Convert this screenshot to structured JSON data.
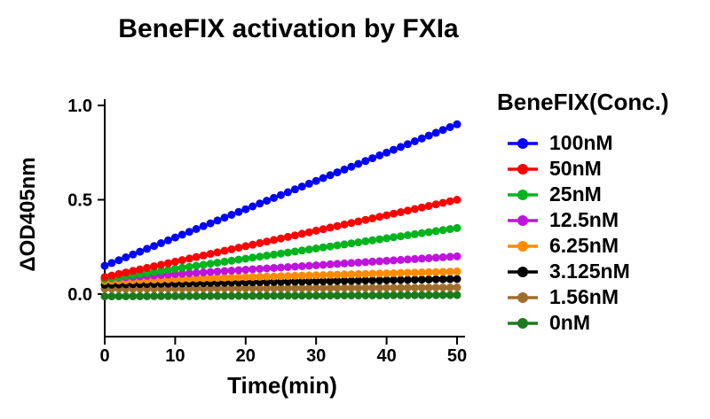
{
  "chart_data": {
    "type": "line",
    "title": "BeneFIX activation by FXIa",
    "xlabel": "Time(min)",
    "ylabel": "ΔOD405nm",
    "xlim": [
      0,
      50
    ],
    "ylim": [
      0,
      1.0
    ],
    "xticks": [
      0,
      10,
      20,
      30,
      40,
      50
    ],
    "ytick_labels": [
      "0.0",
      "0.5",
      "1.0"
    ],
    "yticks": [
      0.0,
      0.5,
      1.0
    ],
    "grid": false,
    "legend_title": "BeneFIX(Conc.)",
    "legend_position": "right",
    "axis_color": "#000000",
    "marker_shape": "circle",
    "x_step_min": 1,
    "n_points_per_series": 51,
    "interpolation": "linear",
    "series": [
      {
        "name": "100nM",
        "color": "#0000FF",
        "x_start": 0,
        "x_end": 50,
        "y_start": 0.15,
        "y_end": 0.9
      },
      {
        "name": "50nM",
        "color": "#FF0000",
        "x_start": 0,
        "x_end": 50,
        "y_start": 0.09,
        "y_end": 0.5
      },
      {
        "name": "25nM",
        "color": "#00B41E",
        "x_start": 0,
        "x_end": 50,
        "y_start": 0.08,
        "y_end": 0.35
      },
      {
        "name": "12.5nM",
        "color": "#BE14DC",
        "x_start": 0,
        "x_end": 50,
        "y_start": 0.082,
        "y_end": 0.2
      },
      {
        "name": "6.25nM",
        "color": "#FF8C00",
        "x_start": 0,
        "x_end": 50,
        "y_start": 0.07,
        "y_end": 0.12
      },
      {
        "name": "3.125nM",
        "color": "#000000",
        "x_start": 0,
        "x_end": 50,
        "y_start": 0.05,
        "y_end": 0.08
      },
      {
        "name": "1.56nM",
        "color": "#A06E2C",
        "x_start": 0,
        "x_end": 50,
        "y_start": 0.028,
        "y_end": 0.035
      },
      {
        "name": "0nM",
        "color": "#1B7A1B",
        "x_start": 0,
        "x_end": 50,
        "y_start": -0.012,
        "y_end": -0.005
      }
    ]
  }
}
